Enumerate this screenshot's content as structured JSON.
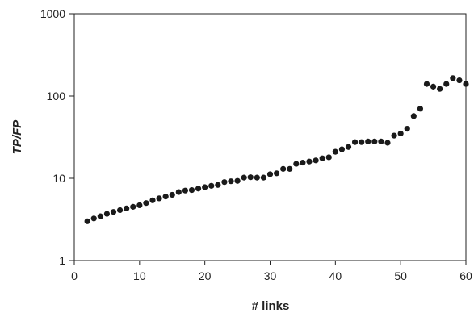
{
  "chart_data": {
    "type": "scatter",
    "xlabel": "# links",
    "ylabel": "TP/FP",
    "xlim": [
      0,
      60
    ],
    "ylim": [
      1,
      1000
    ],
    "y_scale": "log",
    "grid": false,
    "legend": "none",
    "marker_color": "#1a1a1a",
    "x_ticks": [
      0,
      10,
      20,
      30,
      40,
      50,
      60
    ],
    "x_tick_labels": [
      "0",
      "10",
      "20",
      "30",
      "40",
      "50",
      "60"
    ],
    "y_ticks": [
      1,
      10,
      100,
      1000
    ],
    "y_tick_labels": [
      "1",
      "10",
      "100",
      "1000"
    ],
    "series": [
      {
        "x": [
          2,
          3,
          4,
          5,
          6,
          7,
          8,
          9,
          10,
          11,
          12,
          13,
          14,
          15,
          16,
          17,
          18,
          19,
          20,
          21,
          22,
          23,
          24,
          25,
          26,
          27,
          28,
          29,
          30,
          31,
          32,
          33,
          34,
          35,
          36,
          37,
          38,
          39,
          40,
          41,
          42,
          43,
          44,
          45,
          46,
          47,
          48,
          49,
          50,
          51,
          52,
          53,
          54,
          55,
          56,
          57,
          58,
          59,
          60
        ],
        "y": [
          3.0,
          3.25,
          3.45,
          3.7,
          3.9,
          4.1,
          4.3,
          4.5,
          4.7,
          5.0,
          5.4,
          5.7,
          6.0,
          6.3,
          6.8,
          7.1,
          7.2,
          7.5,
          7.8,
          8.1,
          8.3,
          9.0,
          9.2,
          9.3,
          10.2,
          10.3,
          10.2,
          10.2,
          11.2,
          11.5,
          13.0,
          13.0,
          15.0,
          15.5,
          16.0,
          16.5,
          17.5,
          18.0,
          21.0,
          22.5,
          24.0,
          27.5,
          27.5,
          28.0,
          28.0,
          28.0,
          27.0,
          33.0,
          35.0,
          40.0,
          57.0,
          70.0,
          140.0,
          130.0,
          122.0,
          140.0,
          165.0,
          155.0,
          140.0
        ]
      }
    ]
  }
}
